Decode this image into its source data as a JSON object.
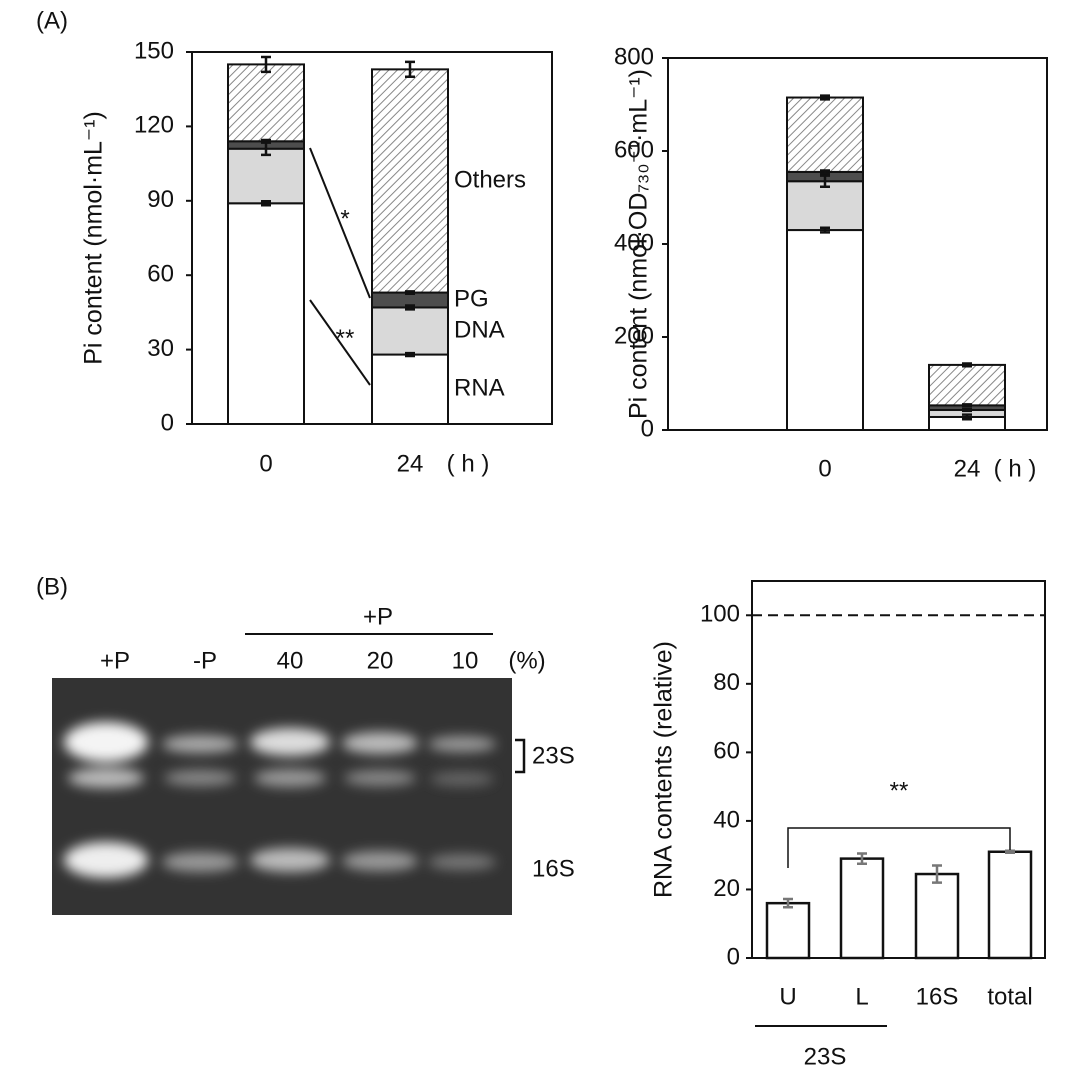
{
  "panel_labels": [
    "(A)",
    "(B)"
  ],
  "gel": {
    "lanes": [
      "+P",
      "-P",
      "40",
      "20",
      "10"
    ],
    "unit": "(%)",
    "group": "+P",
    "bands": [
      "23S",
      "16S"
    ]
  },
  "chart_data": [
    {
      "type": "stacked-bar",
      "ylabel": "Pi content (nmol·mL⁻¹)",
      "categories": [
        "0",
        "24"
      ],
      "x_unit": "( h )",
      "ylim": [
        0,
        150
      ],
      "yticks": [
        0,
        30,
        60,
        90,
        120,
        150
      ],
      "series_labels_beside": true,
      "series": [
        {
          "name": "RNA",
          "color": "#ffffff",
          "values": [
            89,
            28
          ],
          "errors": [
            0.8,
            0.6
          ]
        },
        {
          "name": "DNA",
          "color": "#d9d9d9",
          "values": [
            22,
            19
          ],
          "errors": [
            2.5,
            0.8
          ]
        },
        {
          "name": "PG",
          "color": "#4d4d4d",
          "values": [
            3,
            6
          ],
          "errors": [
            0.5,
            0.5
          ]
        },
        {
          "name": "Others",
          "color": "#ffffff",
          "hatch": true,
          "values": [
            31,
            90
          ],
          "errors": [
            3,
            3
          ]
        }
      ],
      "annotations": [
        "*",
        "**"
      ]
    },
    {
      "type": "stacked-bar",
      "ylabel": "Pi content (nmol·OD₇₃₀⁻¹·mL⁻¹)",
      "categories": [
        "0",
        "24"
      ],
      "x_unit": "( h )",
      "ylim": [
        0,
        800
      ],
      "yticks": [
        0,
        200,
        400,
        600,
        800
      ],
      "series": [
        {
          "color": "#ffffff",
          "values": [
            430,
            28
          ],
          "errors": [
            5,
            5
          ]
        },
        {
          "color": "#d9d9d9",
          "values": [
            105,
            15
          ],
          "errors": [
            12,
            2
          ]
        },
        {
          "color": "#4d4d4d",
          "values": [
            20,
            10
          ],
          "errors": [
            3,
            2
          ]
        },
        {
          "color": "#ffffff",
          "hatch": true,
          "values": [
            160,
            87
          ],
          "errors": [
            4,
            3
          ]
        }
      ]
    },
    {
      "type": "bar",
      "ylabel": "RNA contents (relative)",
      "categories": [
        "U",
        "L",
        "16S",
        "total"
      ],
      "values": [
        16,
        29,
        24.5,
        31
      ],
      "errors": [
        1.2,
        1.5,
        2.5,
        0.3
      ],
      "color": "#ffffff",
      "ylim": [
        0,
        110
      ],
      "yticks": [
        0,
        20,
        40,
        60,
        80,
        100
      ],
      "ref_line": 100,
      "group_label": "23S",
      "annotations": [
        "**"
      ]
    }
  ]
}
